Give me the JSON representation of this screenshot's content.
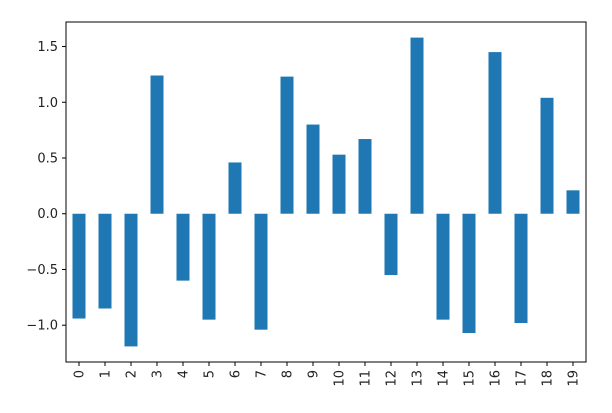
{
  "chart_data": {
    "type": "bar",
    "title": "",
    "xlabel": "",
    "ylabel": "",
    "categories": [
      "0",
      "1",
      "2",
      "3",
      "4",
      "5",
      "6",
      "7",
      "8",
      "9",
      "10",
      "11",
      "12",
      "13",
      "14",
      "15",
      "16",
      "17",
      "18",
      "19"
    ],
    "values": [
      -0.94,
      -0.85,
      -1.19,
      1.24,
      -0.6,
      -0.95,
      0.46,
      -1.04,
      1.23,
      0.8,
      0.53,
      0.67,
      -0.55,
      1.58,
      -0.95,
      -1.07,
      1.45,
      -0.98,
      1.04,
      0.21
    ],
    "ylim": [
      -1.33,
      1.72
    ],
    "yticks": [
      -1.0,
      -0.5,
      0.0,
      0.5,
      1.0,
      1.5
    ],
    "ytick_labels": [
      "−1.0",
      "−0.5",
      "0.0",
      "0.5",
      "1.0",
      "1.5"
    ],
    "grid": false,
    "legend": "none",
    "bar_color": "#1f77b4"
  }
}
